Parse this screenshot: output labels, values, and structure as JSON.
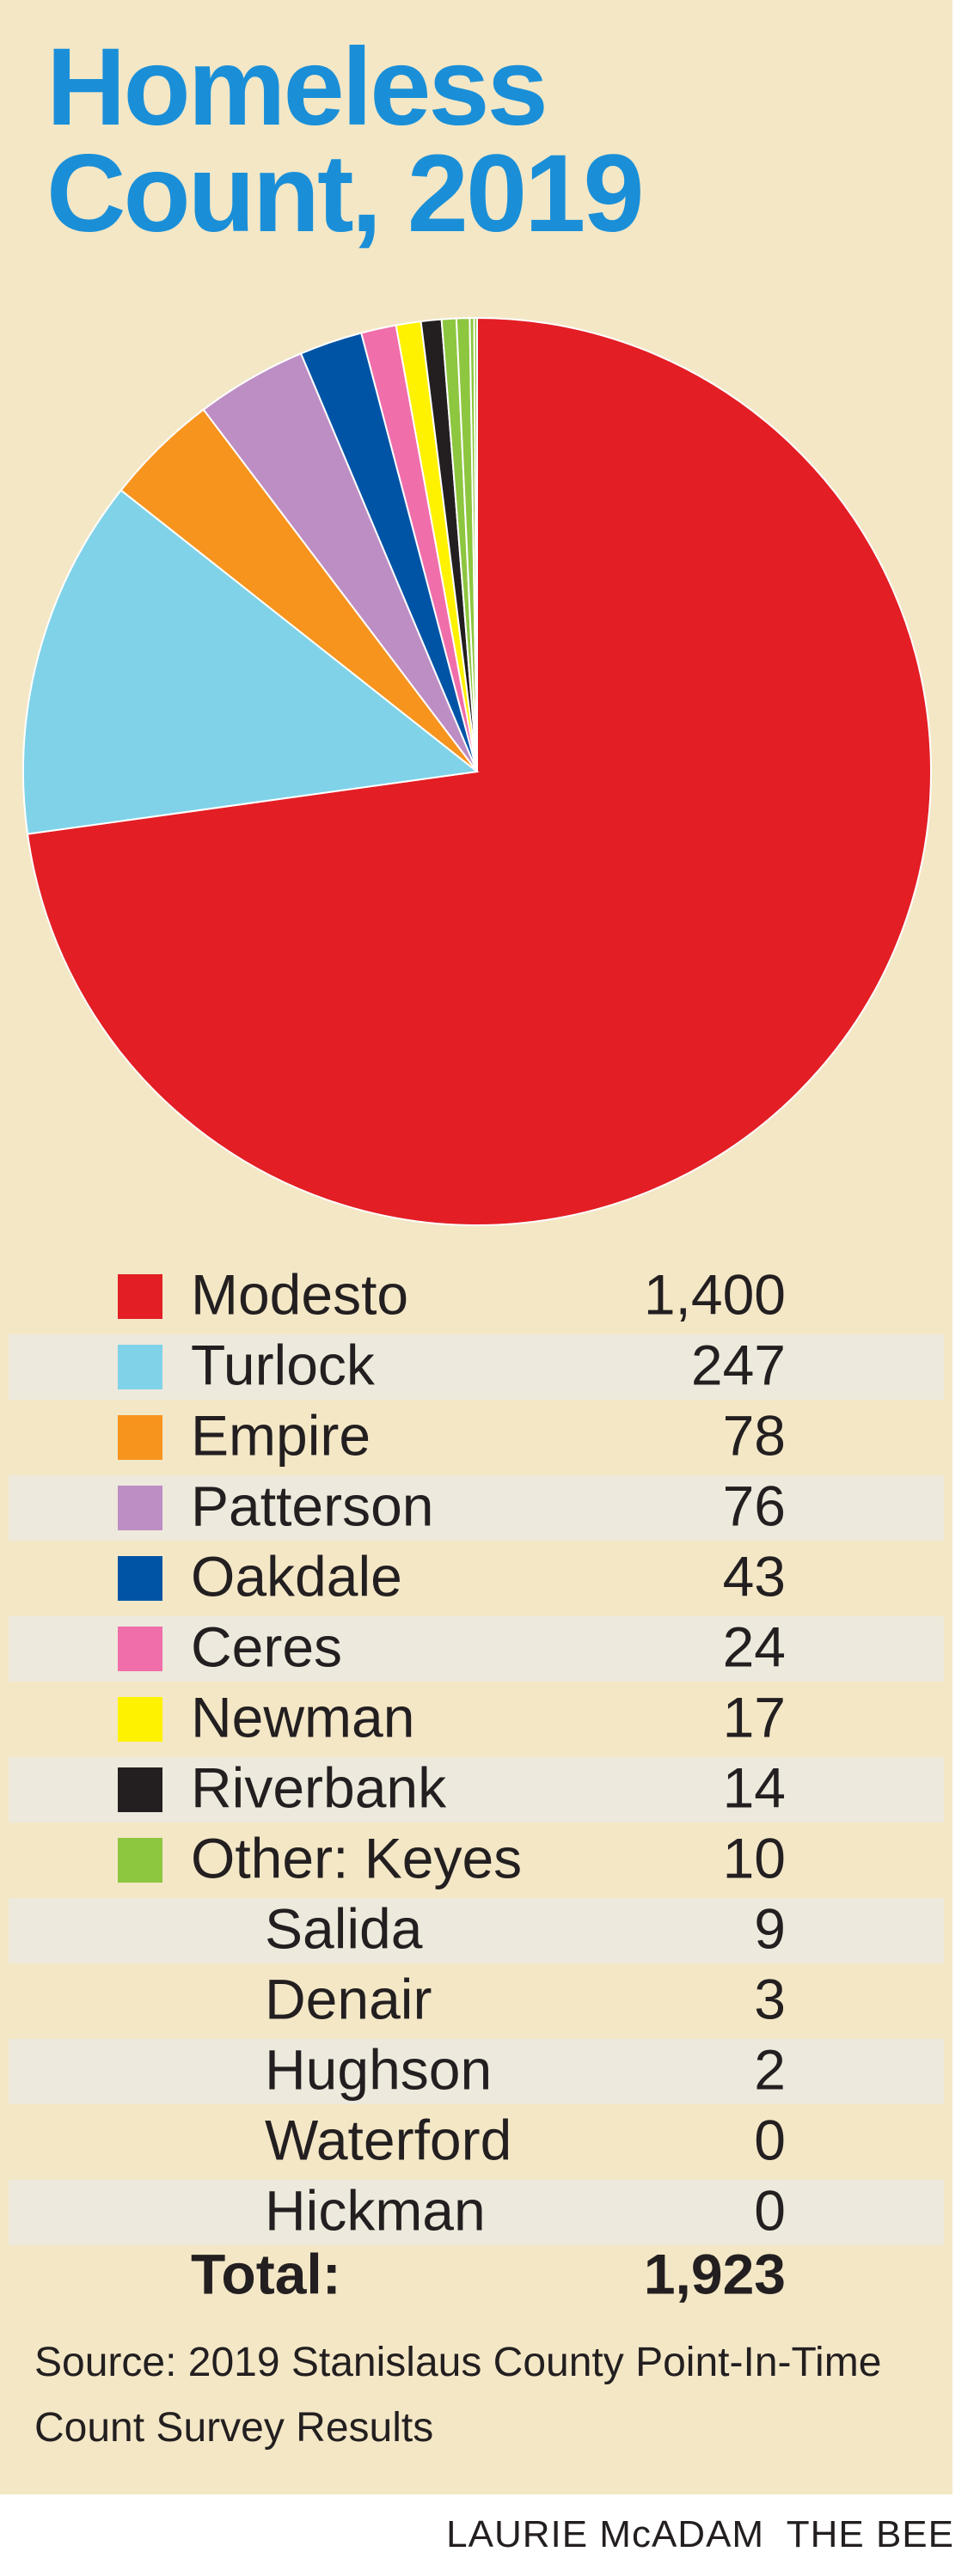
{
  "chart_data": {
    "type": "pie",
    "title": "Homeless Count, 2019",
    "categories": [
      "Modesto",
      "Turlock",
      "Empire",
      "Patterson",
      "Oakdale",
      "Ceres",
      "Newman",
      "Riverbank",
      "Other: Keyes",
      "Salida",
      "Denair",
      "Hughson",
      "Waterford",
      "Hickman"
    ],
    "values": [
      1400,
      247,
      78,
      76,
      43,
      24,
      17,
      14,
      10,
      9,
      3,
      2,
      0,
      0
    ],
    "value_labels": [
      "1,400",
      "247",
      "78",
      "76",
      "43",
      "24",
      "17",
      "14",
      "10",
      "9",
      "3",
      "2",
      "0",
      "0"
    ],
    "colors": [
      "#e31e24",
      "#80d2e8",
      "#f7941d",
      "#bd8ec4",
      "#0054a6",
      "#f06eaa",
      "#fff200",
      "#231f20",
      "#8dc63f"
    ],
    "total": {
      "label": "Total:",
      "value": 1923,
      "value_label": "1,923"
    },
    "source": "Source: 2019 Stanislaus County Point-In-Time Count Survey Results",
    "credit": "LAURIE McADAM  THE BEE"
  }
}
